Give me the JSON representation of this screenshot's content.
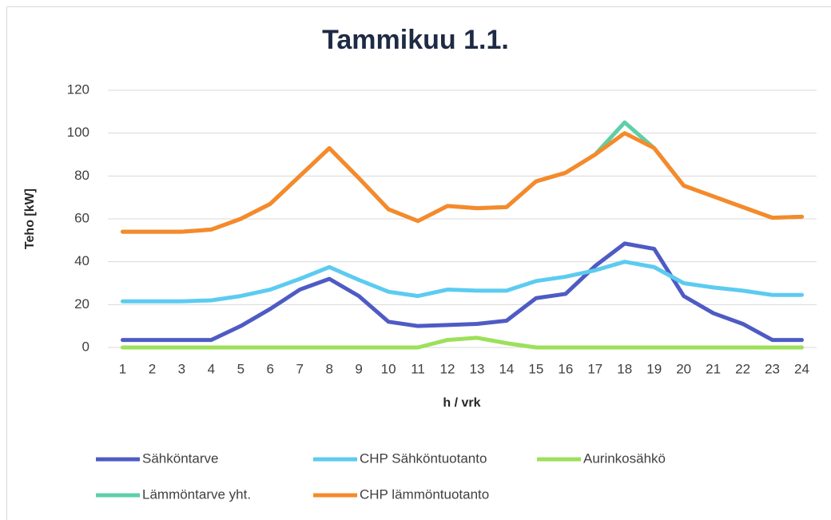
{
  "chart_data": {
    "type": "line",
    "title": "Tammikuu 1.1.",
    "x_label": "h / vrk",
    "y_label": "Teho [kW]",
    "categories": [
      "1",
      "2",
      "3",
      "4",
      "5",
      "6",
      "7",
      "8",
      "9",
      "10",
      "11",
      "12",
      "13",
      "14",
      "15",
      "16",
      "17",
      "18",
      "19",
      "20",
      "21",
      "22",
      "23",
      "24"
    ],
    "ylim": [
      0,
      120
    ],
    "yticks": [
      0,
      20,
      40,
      60,
      80,
      100,
      120
    ],
    "grid": true,
    "legend": "bottom",
    "series": [
      {
        "name": "Sähköntarve",
        "color": "#4e5bc4",
        "values": [
          3.5,
          3.5,
          3.5,
          3.5,
          10,
          18,
          27,
          32,
          24,
          12,
          10,
          10.5,
          11,
          12.5,
          23,
          25,
          38,
          48.5,
          46,
          24,
          16,
          11,
          3.5,
          3.5
        ]
      },
      {
        "name": "CHP Sähköntuotanto",
        "color": "#5ccbf0",
        "values": [
          21.5,
          21.5,
          21.5,
          22,
          24,
          27,
          32,
          37.5,
          31.5,
          26,
          24,
          27,
          26.5,
          26.5,
          31,
          33,
          36,
          40,
          37.5,
          30,
          28,
          26.5,
          24.5,
          24.5
        ]
      },
      {
        "name": "Aurinkosähkö",
        "color": "#9de05a",
        "values": [
          0,
          0,
          0,
          0,
          0,
          0,
          0,
          0,
          0,
          0,
          0,
          3.5,
          4.5,
          2,
          0,
          0,
          0,
          0,
          0,
          0,
          0,
          0,
          0,
          0
        ]
      },
      {
        "name": "Lämmöntarve yht.",
        "color": "#5ecfa7",
        "values": [
          54,
          54,
          54,
          55,
          60,
          67,
          80,
          93,
          79,
          64.5,
          59,
          66,
          65,
          65.5,
          77.5,
          81.5,
          90,
          105,
          93,
          75.5,
          70.5,
          65.5,
          60.5,
          61
        ]
      },
      {
        "name": "CHP lämmöntuotanto",
        "color": "#f7892a",
        "values": [
          54,
          54,
          54,
          55,
          60,
          67,
          80,
          93,
          79,
          64.5,
          59,
          66,
          65,
          65.5,
          77.5,
          81.5,
          90,
          100,
          93,
          75.5,
          70.5,
          65.5,
          60.5,
          61
        ]
      }
    ]
  }
}
